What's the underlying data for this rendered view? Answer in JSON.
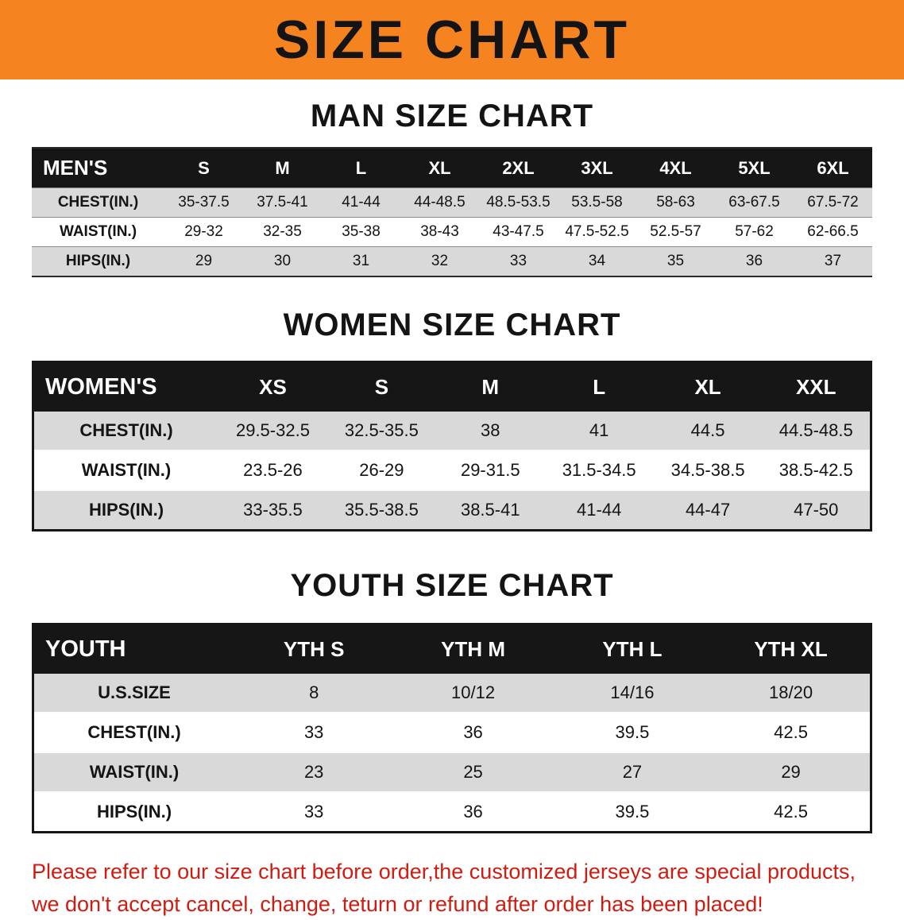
{
  "banner": {
    "title": "SIZE CHART",
    "bg_color": "#f5831f"
  },
  "sections": [
    {
      "heading": "MAN SIZE CHART",
      "table": {
        "header": [
          "MEN'S",
          "S",
          "M",
          "L",
          "XL",
          "2XL",
          "3XL",
          "4XL",
          "5XL",
          "6XL"
        ],
        "rows": [
          [
            "CHEST(IN.)",
            "35-37.5",
            "37.5-41",
            "41-44",
            "44-48.5",
            "48.5-53.5",
            "53.5-58",
            "58-63",
            "63-67.5",
            "67.5-72"
          ],
          [
            "WAIST(IN.)",
            "29-32",
            "32-35",
            "35-38",
            "38-43",
            "43-47.5",
            "47.5-52.5",
            "52.5-57",
            "57-62",
            "62-66.5"
          ],
          [
            "HIPS(IN.)",
            "29",
            "30",
            "31",
            "32",
            "33",
            "34",
            "35",
            "36",
            "37"
          ]
        ]
      }
    },
    {
      "heading": "WOMEN SIZE CHART",
      "table": {
        "header": [
          "WOMEN'S",
          "XS",
          "S",
          "M",
          "L",
          "XL",
          "XXL"
        ],
        "rows": [
          [
            "CHEST(IN.)",
            "29.5-32.5",
            "32.5-35.5",
            "38",
            "41",
            "44.5",
            "44.5-48.5"
          ],
          [
            "WAIST(IN.)",
            "23.5-26",
            "26-29",
            "29-31.5",
            "31.5-34.5",
            "34.5-38.5",
            "38.5-42.5"
          ],
          [
            "HIPS(IN.)",
            "33-35.5",
            "35.5-38.5",
            "38.5-41",
            "41-44",
            "44-47",
            "47-50"
          ]
        ]
      }
    },
    {
      "heading": "YOUTH SIZE CHART",
      "table": {
        "header": [
          "YOUTH",
          "YTH S",
          "YTH M",
          "YTH L",
          "YTH XL"
        ],
        "rows": [
          [
            "U.S.SIZE",
            "8",
            "10/12",
            "14/16",
            "18/20"
          ],
          [
            "CHEST(IN.)",
            "33",
            "36",
            "39.5",
            "42.5"
          ],
          [
            "WAIST(IN.)",
            "23",
            "25",
            "27",
            "29"
          ],
          [
            "HIPS(IN.)",
            "33",
            "36",
            "39.5",
            "42.5"
          ]
        ]
      }
    }
  ],
  "footer": {
    "text_color": "#d01c10",
    "lines": [
      "Please refer to our size chart before order,the customized jerseys are special products,",
      "we don't accept cancel, change, teturn or refund after order has been placed!"
    ]
  }
}
